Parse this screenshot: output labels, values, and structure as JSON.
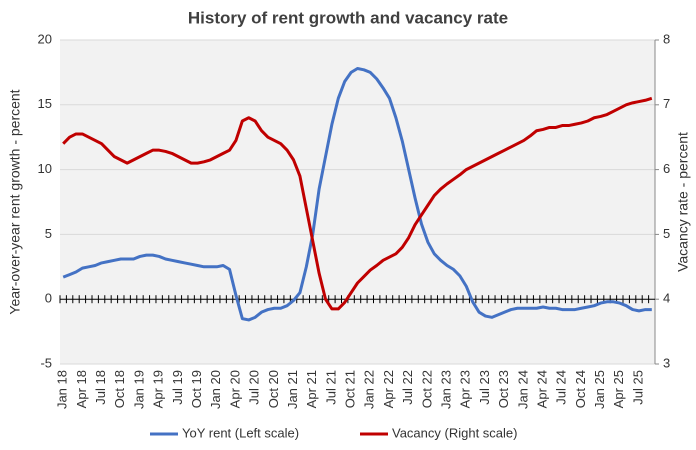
{
  "chart_data": {
    "type": "line",
    "title": "History  of rent growth  and vacancy rate",
    "y_label": "Year-over-year  rent growth - percent",
    "y2_label": "Vacancy rate - percent",
    "categories": [
      "Jan 18",
      null,
      null,
      "Apr 18",
      null,
      null,
      "Jul 18",
      null,
      null,
      "Oct 18",
      null,
      null,
      "Jan 19",
      null,
      null,
      "Apr 19",
      null,
      null,
      "Jul 19",
      null,
      null,
      "Oct 19",
      null,
      null,
      "Jan 20",
      null,
      null,
      "Apr 20",
      null,
      null,
      "Jul 20",
      null,
      null,
      "Oct 20",
      null,
      null,
      "Jan 21",
      null,
      null,
      "Apr 21",
      null,
      null,
      "Jul 21",
      null,
      null,
      "Oct 21",
      null,
      null,
      "Jan 22",
      null,
      null,
      "Apr 22",
      null,
      null,
      "Jul 22",
      null,
      null,
      "Oct 22",
      null,
      null,
      "Jan 23",
      null,
      null,
      "Apr 23",
      null,
      null,
      "Jul 23",
      null,
      null,
      "Oct 23",
      null,
      null,
      "Jan 24",
      null,
      null,
      "Apr 24",
      null,
      null,
      "Jul 24",
      null,
      null,
      "Oct 24",
      null,
      null,
      "Jan 25",
      null,
      null,
      "Apr 25",
      null,
      null,
      "Jul 25",
      null,
      null
    ],
    "series": [
      {
        "name": "YoY rent (Left scale)",
        "color": "#4472c4",
        "axis": "y",
        "values": [
          1.7,
          1.9,
          2.1,
          2.4,
          2.5,
          2.6,
          2.8,
          2.9,
          3.0,
          3.1,
          3.1,
          3.1,
          3.3,
          3.4,
          3.4,
          3.3,
          3.1,
          3.0,
          2.9,
          2.8,
          2.7,
          2.6,
          2.5,
          2.5,
          2.5,
          2.6,
          2.3,
          0.3,
          -1.5,
          -1.6,
          -1.4,
          -1.0,
          -0.8,
          -0.7,
          -0.7,
          -0.5,
          -0.1,
          0.5,
          2.5,
          5.0,
          8.5,
          11.0,
          13.5,
          15.5,
          16.8,
          17.5,
          17.8,
          17.7,
          17.5,
          17.0,
          16.3,
          15.5,
          14.0,
          12.2,
          10.0,
          7.8,
          5.8,
          4.4,
          3.5,
          3.0,
          2.6,
          2.3,
          1.8,
          1.0,
          -0.2,
          -1.0,
          -1.3,
          -1.4,
          -1.2,
          -1.0,
          -0.8,
          -0.7,
          -0.7,
          -0.7,
          -0.7,
          -0.6,
          -0.7,
          -0.7,
          -0.8,
          -0.8,
          -0.8,
          -0.7,
          -0.6,
          -0.5,
          -0.3,
          -0.2,
          -0.2,
          -0.3,
          -0.5,
          -0.8,
          -0.9,
          -0.8,
          -0.8
        ]
      },
      {
        "name": "Vacancy (Right scale)",
        "color": "#c00000",
        "axis": "y2",
        "values": [
          6.4,
          6.5,
          6.55,
          6.55,
          6.5,
          6.45,
          6.4,
          6.3,
          6.2,
          6.15,
          6.1,
          6.15,
          6.2,
          6.25,
          6.3,
          6.3,
          6.28,
          6.25,
          6.2,
          6.15,
          6.1,
          6.1,
          6.12,
          6.15,
          6.2,
          6.25,
          6.3,
          6.45,
          6.75,
          6.8,
          6.75,
          6.6,
          6.5,
          6.45,
          6.4,
          6.3,
          6.15,
          5.9,
          5.4,
          4.9,
          4.4,
          4.0,
          3.85,
          3.85,
          3.95,
          4.1,
          4.25,
          4.35,
          4.45,
          4.52,
          4.6,
          4.65,
          4.7,
          4.8,
          4.95,
          5.15,
          5.3,
          5.45,
          5.6,
          5.7,
          5.78,
          5.85,
          5.92,
          6.0,
          6.05,
          6.1,
          6.15,
          6.2,
          6.25,
          6.3,
          6.35,
          6.4,
          6.45,
          6.52,
          6.6,
          6.62,
          6.65,
          6.65,
          6.68,
          6.68,
          6.7,
          6.72,
          6.75,
          6.8,
          6.82,
          6.85,
          6.9,
          6.95,
          7.0,
          7.03,
          7.05,
          7.07,
          7.1
        ]
      }
    ],
    "ylim": [
      -5,
      20
    ],
    "yticks": [
      -5,
      0,
      5,
      10,
      15,
      20
    ],
    "y2lim": [
      3,
      8
    ],
    "y2ticks": [
      3,
      4,
      5,
      6,
      7,
      8
    ],
    "grid": true,
    "legend": "bottom"
  }
}
